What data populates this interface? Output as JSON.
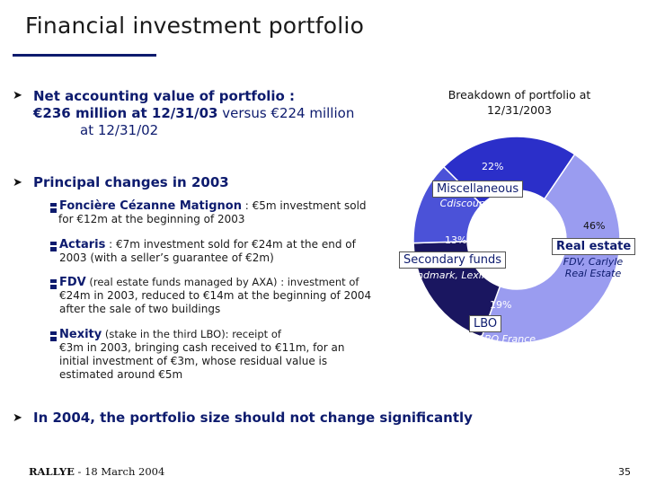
{
  "slide": {
    "title": "Financial investment portfolio",
    "bullets": {
      "net_value": {
        "line1": "Net accounting value of portfolio :",
        "line2_bold": "€236 million at 12/31/03",
        "line2_rest": " versus €224 million",
        "line3": "at 12/31/02"
      },
      "changes": {
        "heading": "Principal changes in 2003"
      },
      "outlook": "In 2004, the portfolio size should not change significantly"
    },
    "sub_items": [
      {
        "lead": "Foncière Cézanne Matignon",
        "rest": " : €5m investment sold",
        "cont": [
          "for €12m at the beginning of 2003"
        ]
      },
      {
        "lead": "Actaris",
        "rest": " : €7m investment sold for €24m at the end of",
        "cont": [
          "2003 (with a seller’s guarantee of €2m)"
        ]
      },
      {
        "lead": "FDV",
        "rest": " (real estate funds managed by AXA) : investment of",
        "cont": [
          "€24m in 2003, reduced to €14m at the beginning of 2004",
          "after the sale of two buildings"
        ]
      },
      {
        "lead": "Nexity",
        "rest": " (stake in the third LBO): receipt of",
        "cont": [
          "€3m in 2003, bringing cash received to €11m, for an",
          "initial investment of €3m, whose residual value is",
          "estimated around €5m"
        ]
      }
    ],
    "footer": {
      "brand": "RALLYE",
      "date": " - 18 March 2004"
    },
    "page_number": "35"
  },
  "chart_data": {
    "type": "pie",
    "variant": "donut",
    "title_lines": [
      "Breakdown of portfolio at",
      "12/31/2003"
    ],
    "slices": [
      {
        "label": "Miscellaneous",
        "value": 22,
        "pct_label": "22%",
        "sub": "Cdiscount, LoneStar",
        "color": "#2b2fc9"
      },
      {
        "label": "Real estate",
        "value": 46,
        "pct_label": "46%",
        "sub_lines": [
          "FDV, Carlyle",
          "Real Estate"
        ],
        "color": "#9a9cf0"
      },
      {
        "label": "LBO",
        "value": 19,
        "pct_label": "19%",
        "sub": "PAI, LBO France…",
        "color": "#1a1660"
      },
      {
        "label": "Secondary funds",
        "value": 13,
        "pct_label": "13%",
        "sub": "Landmark, Lexington…",
        "color": "#4b52d8"
      }
    ]
  }
}
